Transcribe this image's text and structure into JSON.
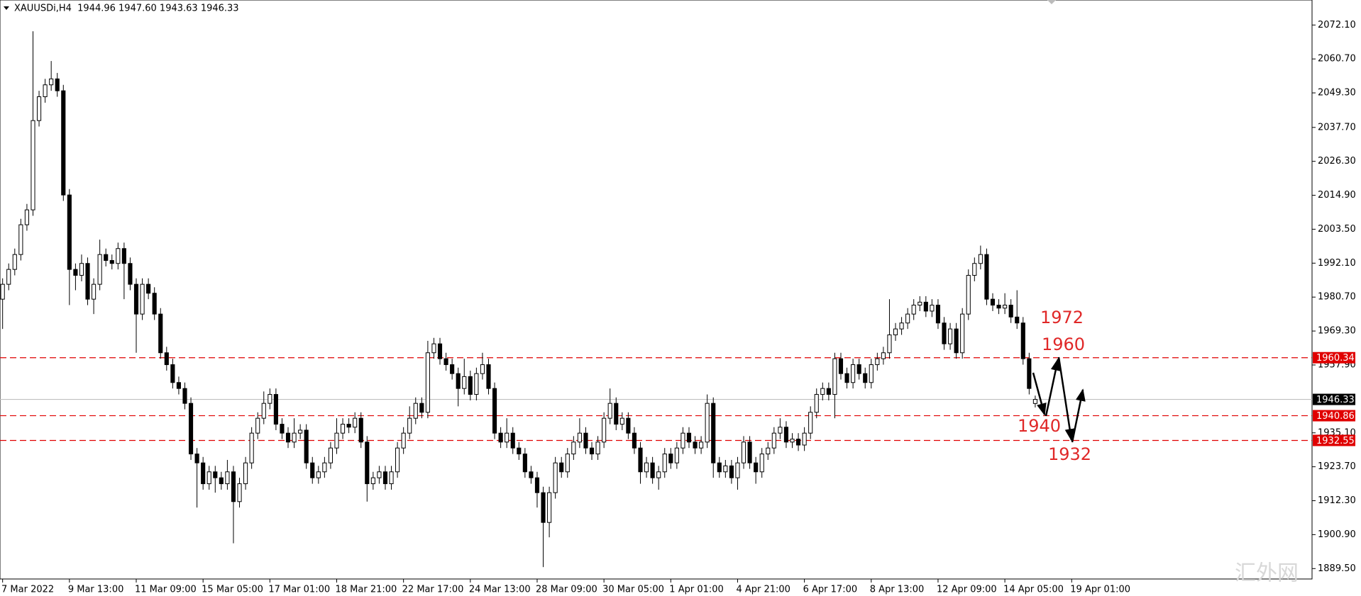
{
  "chart_data": {
    "type": "candlestick",
    "title": "XAUUSDi,H4  1944.96 1947.60 1943.63 1946.33",
    "up_color": "#ffffff",
    "down_color": "#000000",
    "wick_color": "#000000",
    "xlim": [
      -0.43,
      215.57
    ],
    "ylim": [
      1886.0,
      2080.5
    ],
    "yticks": [
      {
        "value": 2072.1,
        "label": "2072.10"
      },
      {
        "value": 2060.7,
        "label": "2060.70"
      },
      {
        "value": 2049.3,
        "label": "2049.30"
      },
      {
        "value": 2037.7,
        "label": "2037.70"
      },
      {
        "value": 2026.3,
        "label": "2026.30"
      },
      {
        "value": 2014.9,
        "label": "2014.90"
      },
      {
        "value": 2003.5,
        "label": "2003.50"
      },
      {
        "value": 1992.1,
        "label": "1992.10"
      },
      {
        "value": 1980.7,
        "label": "1980.70"
      },
      {
        "value": 1969.3,
        "label": "1969.30"
      },
      {
        "value": 1957.9,
        "label": "1957.90"
      },
      {
        "value": 1935.1,
        "label": "1935.10"
      },
      {
        "value": 1923.7,
        "label": "1923.70"
      },
      {
        "value": 1912.3,
        "label": "1912.30"
      },
      {
        "value": 1900.9,
        "label": "1900.90"
      },
      {
        "value": 1889.5,
        "label": "1889.50"
      }
    ],
    "xticks": [
      {
        "value": 0,
        "label": "7 Mar 2022"
      },
      {
        "value": 11,
        "label": "9 Mar 13:00"
      },
      {
        "value": 22,
        "label": "11 Mar 09:00"
      },
      {
        "value": 33,
        "label": "15 Mar 05:00"
      },
      {
        "value": 44,
        "label": "17 Mar 01:00"
      },
      {
        "value": 55,
        "label": "18 Mar 21:00"
      },
      {
        "value": 66,
        "label": "22 Mar 17:00"
      },
      {
        "value": 77,
        "label": "24 Mar 13:00"
      },
      {
        "value": 88,
        "label": "28 Mar 09:00"
      },
      {
        "value": 99,
        "label": "30 Mar 05:00"
      },
      {
        "value": 110,
        "label": "1 Apr 01:00"
      },
      {
        "value": 121,
        "label": "4 Apr 21:00"
      },
      {
        "value": 132,
        "label": "6 Apr 17:00"
      },
      {
        "value": 143,
        "label": "8 Apr 13:00"
      },
      {
        "value": 154,
        "label": "12 Apr 09:00"
      },
      {
        "value": 165,
        "label": "14 Apr 05:00"
      },
      {
        "value": 176,
        "label": "19 Apr 01:00"
      }
    ],
    "hlines": [
      {
        "value": 1960.34,
        "label": "1960.34",
        "color": "#e00000",
        "dashed": true
      },
      {
        "value": 1940.86,
        "label": "1940.86",
        "color": "#e00000",
        "dashed": true
      },
      {
        "value": 1932.55,
        "label": "1932.55",
        "color": "#e00000",
        "dashed": true
      },
      {
        "value": 1946.33,
        "label": "1946.33",
        "color": "#c0c0c0",
        "label_color": "#000000",
        "dashed": false
      }
    ],
    "annotations": [
      "1972",
      "1960",
      "1940",
      "1932"
    ],
    "watermark": "汇外网",
    "candles": [
      [
        1980,
        1987,
        1970,
        1985
      ],
      [
        1985,
        1992,
        1983,
        1990
      ],
      [
        1990,
        1997,
        1988,
        1995
      ],
      [
        1995,
        2007,
        1993,
        2005
      ],
      [
        2005,
        2012,
        2003,
        2010
      ],
      [
        2010,
        2070,
        2008,
        2040
      ],
      [
        2040,
        2050,
        2038,
        2048
      ],
      [
        2048,
        2054,
        2046,
        2052
      ],
      [
        2052,
        2060,
        2050,
        2054
      ],
      [
        2054,
        2056,
        2048,
        2050
      ],
      [
        2050,
        2052,
        2013,
        2015
      ],
      [
        2015,
        2017,
        1978,
        1990
      ],
      [
        1990,
        1992,
        1983,
        1988
      ],
      [
        1988,
        1995,
        1986,
        1992
      ],
      [
        1992,
        1994,
        1978,
        1980
      ],
      [
        1980,
        1987,
        1975,
        1985
      ],
      [
        1985,
        2000,
        1983,
        1995
      ],
      [
        1995,
        1997,
        1991,
        1993
      ],
      [
        1993,
        1995,
        1990,
        1992
      ],
      [
        1992,
        1999,
        1990,
        1997
      ],
      [
        1997,
        1999,
        1980,
        1992
      ],
      [
        1992,
        1994,
        1983,
        1985
      ],
      [
        1985,
        1987,
        1962,
        1975
      ],
      [
        1975,
        1987,
        1973,
        1985
      ],
      [
        1985,
        1987,
        1980,
        1982
      ],
      [
        1982,
        1984,
        1973,
        1975
      ],
      [
        1975,
        1977,
        1960,
        1962
      ],
      [
        1962,
        1964,
        1956,
        1958
      ],
      [
        1958,
        1960,
        1950,
        1952
      ],
      [
        1952,
        1954,
        1948,
        1950
      ],
      [
        1950,
        1952,
        1943,
        1945
      ],
      [
        1945,
        1947,
        1926,
        1928
      ],
      [
        1928,
        1930,
        1910,
        1925
      ],
      [
        1925,
        1927,
        1916,
        1918
      ],
      [
        1918,
        1924,
        1916,
        1922
      ],
      [
        1922,
        1924,
        1915,
        1920
      ],
      [
        1920,
        1922,
        1916,
        1918
      ],
      [
        1918,
        1926,
        1916,
        1922
      ],
      [
        1922,
        1924,
        1898,
        1912
      ],
      [
        1912,
        1920,
        1910,
        1918
      ],
      [
        1918,
        1927,
        1916,
        1925
      ],
      [
        1925,
        1937,
        1923,
        1935
      ],
      [
        1935,
        1942,
        1933,
        1940
      ],
      [
        1940,
        1949,
        1938,
        1945
      ],
      [
        1945,
        1950,
        1943,
        1948
      ],
      [
        1948,
        1950,
        1936,
        1938
      ],
      [
        1938,
        1940,
        1933,
        1935
      ],
      [
        1935,
        1937,
        1930,
        1932
      ],
      [
        1932,
        1940,
        1930,
        1935
      ],
      [
        1935,
        1938,
        1933,
        1936
      ],
      [
        1936,
        1938,
        1923,
        1925
      ],
      [
        1925,
        1927,
        1918,
        1920
      ],
      [
        1920,
        1924,
        1918,
        1922
      ],
      [
        1922,
        1927,
        1920,
        1925
      ],
      [
        1925,
        1932,
        1923,
        1930
      ],
      [
        1930,
        1940,
        1928,
        1935
      ],
      [
        1935,
        1940,
        1933,
        1938
      ],
      [
        1938,
        1940,
        1935,
        1937
      ],
      [
        1937,
        1942,
        1935,
        1940
      ],
      [
        1940,
        1942,
        1930,
        1932
      ],
      [
        1932,
        1934,
        1912,
        1918
      ],
      [
        1918,
        1922,
        1916,
        1920
      ],
      [
        1920,
        1924,
        1918,
        1922
      ],
      [
        1922,
        1924,
        1916,
        1918
      ],
      [
        1918,
        1924,
        1916,
        1922
      ],
      [
        1922,
        1932,
        1920,
        1930
      ],
      [
        1930,
        1937,
        1928,
        1935
      ],
      [
        1935,
        1944,
        1933,
        1940
      ],
      [
        1940,
        1947,
        1938,
        1945
      ],
      [
        1945,
        1947,
        1940,
        1942
      ],
      [
        1942,
        1966,
        1940,
        1962
      ],
      [
        1962,
        1967,
        1960,
        1965
      ],
      [
        1965,
        1967,
        1958,
        1960
      ],
      [
        1960,
        1962,
        1956,
        1958
      ],
      [
        1958,
        1960,
        1953,
        1955
      ],
      [
        1955,
        1957,
        1944,
        1950
      ],
      [
        1950,
        1960,
        1948,
        1954
      ],
      [
        1954,
        1956,
        1946,
        1948
      ],
      [
        1948,
        1957,
        1946,
        1955
      ],
      [
        1955,
        1962,
        1953,
        1958
      ],
      [
        1958,
        1960,
        1948,
        1950
      ],
      [
        1950,
        1952,
        1933,
        1935
      ],
      [
        1935,
        1937,
        1930,
        1932
      ],
      [
        1932,
        1940,
        1930,
        1935
      ],
      [
        1935,
        1937,
        1928,
        1930
      ],
      [
        1930,
        1932,
        1926,
        1928
      ],
      [
        1928,
        1930,
        1920,
        1922
      ],
      [
        1922,
        1924,
        1918,
        1920
      ],
      [
        1920,
        1922,
        1910,
        1915
      ],
      [
        1915,
        1917,
        1890,
        1905
      ],
      [
        1905,
        1917,
        1900,
        1915
      ],
      [
        1915,
        1927,
        1913,
        1925
      ],
      [
        1925,
        1927,
        1920,
        1922
      ],
      [
        1922,
        1930,
        1920,
        1928
      ],
      [
        1928,
        1934,
        1926,
        1932
      ],
      [
        1932,
        1940,
        1930,
        1935
      ],
      [
        1935,
        1937,
        1928,
        1930
      ],
      [
        1930,
        1932,
        1926,
        1928
      ],
      [
        1928,
        1934,
        1926,
        1932
      ],
      [
        1932,
        1942,
        1930,
        1940
      ],
      [
        1940,
        1950,
        1938,
        1945
      ],
      [
        1945,
        1947,
        1936,
        1938
      ],
      [
        1938,
        1942,
        1936,
        1940
      ],
      [
        1940,
        1942,
        1933,
        1935
      ],
      [
        1935,
        1937,
        1928,
        1930
      ],
      [
        1930,
        1932,
        1918,
        1922
      ],
      [
        1922,
        1927,
        1920,
        1925
      ],
      [
        1925,
        1927,
        1918,
        1920
      ],
      [
        1920,
        1924,
        1916,
        1922
      ],
      [
        1922,
        1930,
        1920,
        1928
      ],
      [
        1928,
        1930,
        1923,
        1925
      ],
      [
        1925,
        1932,
        1923,
        1930
      ],
      [
        1930,
        1937,
        1928,
        1935
      ],
      [
        1935,
        1937,
        1930,
        1932
      ],
      [
        1932,
        1934,
        1928,
        1930
      ],
      [
        1930,
        1934,
        1928,
        1932
      ],
      [
        1932,
        1948,
        1930,
        1945
      ],
      [
        1945,
        1947,
        1920,
        1925
      ],
      [
        1925,
        1927,
        1920,
        1922
      ],
      [
        1922,
        1926,
        1920,
        1924
      ],
      [
        1924,
        1926,
        1918,
        1920
      ],
      [
        1920,
        1927,
        1916,
        1925
      ],
      [
        1925,
        1934,
        1923,
        1932
      ],
      [
        1932,
        1934,
        1923,
        1925
      ],
      [
        1925,
        1927,
        1918,
        1922
      ],
      [
        1922,
        1930,
        1920,
        1928
      ],
      [
        1928,
        1932,
        1926,
        1930
      ],
      [
        1930,
        1937,
        1928,
        1935
      ],
      [
        1935,
        1940,
        1933,
        1937
      ],
      [
        1937,
        1939,
        1930,
        1932
      ],
      [
        1932,
        1935,
        1930,
        1933
      ],
      [
        1933,
        1935,
        1929,
        1931
      ],
      [
        1931,
        1937,
        1929,
        1935
      ],
      [
        1935,
        1944,
        1933,
        1942
      ],
      [
        1942,
        1950,
        1940,
        1948
      ],
      [
        1948,
        1952,
        1946,
        1950
      ],
      [
        1950,
        1952,
        1946,
        1948
      ],
      [
        1948,
        1962,
        1940,
        1960
      ],
      [
        1960,
        1962,
        1953,
        1955
      ],
      [
        1955,
        1957,
        1950,
        1952
      ],
      [
        1952,
        1960,
        1950,
        1958
      ],
      [
        1958,
        1960,
        1953,
        1955
      ],
      [
        1955,
        1957,
        1950,
        1952
      ],
      [
        1952,
        1960,
        1950,
        1958
      ],
      [
        1958,
        1962,
        1956,
        1960
      ],
      [
        1960,
        1964,
        1958,
        1962
      ],
      [
        1962,
        1980,
        1960,
        1968
      ],
      [
        1968,
        1972,
        1966,
        1970
      ],
      [
        1970,
        1974,
        1968,
        1972
      ],
      [
        1972,
        1977,
        1970,
        1975
      ],
      [
        1975,
        1980,
        1973,
        1978
      ],
      [
        1978,
        1981,
        1976,
        1979
      ],
      [
        1979,
        1981,
        1974,
        1976
      ],
      [
        1976,
        1980,
        1974,
        1978
      ],
      [
        1978,
        1980,
        1970,
        1972
      ],
      [
        1972,
        1974,
        1963,
        1965
      ],
      [
        1965,
        1972,
        1963,
        1970
      ],
      [
        1970,
        1972,
        1960,
        1962
      ],
      [
        1962,
        1977,
        1960,
        1975
      ],
      [
        1975,
        1990,
        1973,
        1988
      ],
      [
        1988,
        1994,
        1986,
        1992
      ],
      [
        1992,
        1998,
        1990,
        1995
      ],
      [
        1995,
        1997,
        1978,
        1980
      ],
      [
        1980,
        1982,
        1976,
        1978
      ],
      [
        1978,
        1980,
        1975,
        1977
      ],
      [
        1977,
        1982,
        1975,
        1978
      ],
      [
        1978,
        1980,
        1972,
        1974
      ],
      [
        1974,
        1983,
        1970,
        1972
      ],
      [
        1972,
        1974,
        1958,
        1960
      ],
      [
        1960,
        1962,
        1948,
        1950
      ],
      [
        1944.96,
        1947.6,
        1943.63,
        1946.33
      ]
    ]
  }
}
